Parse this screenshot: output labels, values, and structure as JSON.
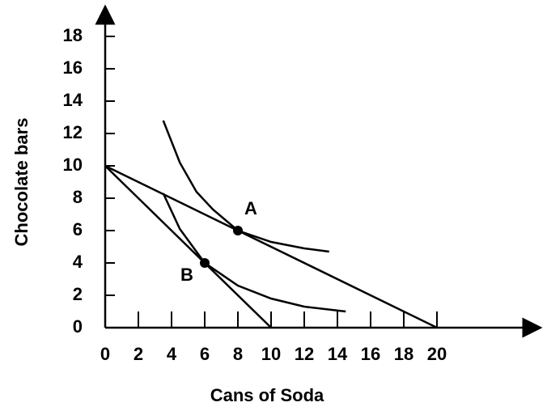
{
  "chart_data": {
    "type": "line",
    "x_label": "Cans of Soda",
    "y_label": "Chocolate bars",
    "xlim": [
      0,
      26
    ],
    "ylim": [
      0,
      20
    ],
    "xticks": [
      0,
      2,
      4,
      6,
      8,
      10,
      12,
      14,
      16,
      18,
      20
    ],
    "yticks": [
      0,
      2,
      4,
      6,
      8,
      10,
      12,
      14,
      16,
      18
    ],
    "color": "#000000",
    "series": [
      {
        "color": "#000000",
        "x": [
          0,
          10
        ],
        "values": [
          10,
          0
        ]
      },
      {
        "color": "#000000",
        "x": [
          0,
          20
        ],
        "values": [
          10,
          0
        ]
      },
      {
        "color": "#000000",
        "x": [
          3.5,
          4.5,
          5.5,
          6.5,
          8,
          10,
          12,
          13.5
        ],
        "values": [
          12.8,
          10.2,
          8.4,
          7.3,
          6,
          5.3,
          4.9,
          4.7
        ]
      },
      {
        "color": "#000000",
        "x": [
          3.5,
          4.5,
          6,
          8,
          10,
          12,
          14.5
        ],
        "values": [
          8.3,
          6.1,
          4,
          2.6,
          1.8,
          1.3,
          1
        ]
      }
    ],
    "points": {
      "x": [
        8,
        6
      ],
      "values": [
        6,
        4
      ],
      "labels": [
        "A",
        "B"
      ]
    }
  }
}
